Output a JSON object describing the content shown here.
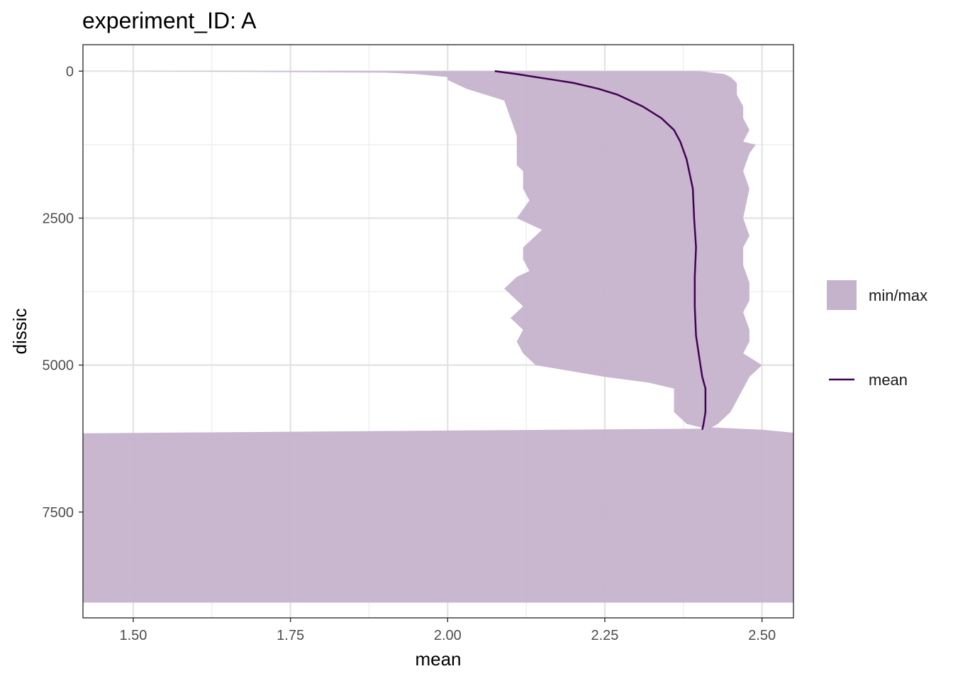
{
  "chart_data": {
    "type": "area",
    "title": "experiment_ID: A",
    "xlabel": "mean",
    "ylabel": "dissic",
    "xlim": [
      1.42,
      2.55
    ],
    "ylim": [
      9300,
      -450
    ],
    "y_reversed": true,
    "grid": true,
    "legend_position": "right",
    "x_ticks": [
      1.5,
      1.75,
      2.0,
      2.25,
      2.5
    ],
    "x_tick_labels": [
      "1.50",
      "1.75",
      "2.00",
      "2.25",
      "2.50"
    ],
    "y_ticks": [
      0,
      2500,
      5000,
      7500
    ],
    "y_tick_labels": [
      "0",
      "2500",
      "5000",
      "7500"
    ],
    "legend": [
      {
        "label": "min/max",
        "kind": "fill",
        "color": "#c5b3cc"
      },
      {
        "label": "mean",
        "kind": "line",
        "color": "#440154"
      }
    ],
    "band": {
      "name": "min/max",
      "color": "#c5b3cc",
      "min": [
        [
          0,
          1.475
        ],
        [
          25,
          1.9
        ],
        [
          50,
          1.95
        ],
        [
          100,
          2.0
        ],
        [
          150,
          2.0
        ],
        [
          200,
          2.01
        ],
        [
          300,
          2.03
        ],
        [
          500,
          2.09
        ],
        [
          800,
          2.1
        ],
        [
          1100,
          2.11
        ],
        [
          1300,
          2.11
        ],
        [
          1600,
          2.11
        ],
        [
          1700,
          2.12
        ],
        [
          2000,
          2.12
        ],
        [
          2200,
          2.13
        ],
        [
          2500,
          2.11
        ],
        [
          2700,
          2.15
        ],
        [
          3000,
          2.12
        ],
        [
          3200,
          2.12
        ],
        [
          3400,
          2.13
        ],
        [
          3500,
          2.11
        ],
        [
          3700,
          2.09
        ],
        [
          4000,
          2.12
        ],
        [
          4200,
          2.1
        ],
        [
          4400,
          2.12
        ],
        [
          4600,
          2.11
        ],
        [
          4800,
          2.12
        ],
        [
          5000,
          2.14
        ],
        [
          5200,
          2.25
        ],
        [
          5300,
          2.32
        ],
        [
          5400,
          2.36
        ],
        [
          5500,
          2.36
        ],
        [
          5800,
          2.36
        ],
        [
          6000,
          2.38
        ],
        [
          6080,
          2.41
        ],
        [
          6130,
          1.8
        ],
        [
          6160,
          1.42
        ],
        [
          9040,
          1.42
        ]
      ],
      "max": [
        [
          0,
          2.4
        ],
        [
          50,
          2.44
        ],
        [
          100,
          2.45
        ],
        [
          200,
          2.46
        ],
        [
          400,
          2.46
        ],
        [
          600,
          2.47
        ],
        [
          800,
          2.47
        ],
        [
          1000,
          2.48
        ],
        [
          1200,
          2.47
        ],
        [
          1250,
          2.49
        ],
        [
          1400,
          2.48
        ],
        [
          1700,
          2.47
        ],
        [
          2000,
          2.48
        ],
        [
          2500,
          2.47
        ],
        [
          2800,
          2.48
        ],
        [
          3000,
          2.47
        ],
        [
          3300,
          2.47
        ],
        [
          3600,
          2.48
        ],
        [
          3900,
          2.48
        ],
        [
          4100,
          2.47
        ],
        [
          4400,
          2.48
        ],
        [
          4600,
          2.48
        ],
        [
          4800,
          2.47
        ],
        [
          5000,
          2.5
        ],
        [
          5200,
          2.48
        ],
        [
          5400,
          2.47
        ],
        [
          5600,
          2.46
        ],
        [
          5800,
          2.45
        ],
        [
          6000,
          2.43
        ],
        [
          6060,
          2.42
        ],
        [
          6100,
          2.5
        ],
        [
          6150,
          2.55
        ],
        [
          9040,
          2.55
        ]
      ]
    },
    "series": [
      {
        "name": "mean",
        "color": "#440154",
        "points": [
          [
            0,
            2.075
          ],
          [
            50,
            2.11
          ],
          [
            100,
            2.14
          ],
          [
            150,
            2.17
          ],
          [
            200,
            2.2
          ],
          [
            300,
            2.24
          ],
          [
            400,
            2.27
          ],
          [
            600,
            2.31
          ],
          [
            800,
            2.34
          ],
          [
            1000,
            2.36
          ],
          [
            1200,
            2.37
          ],
          [
            1500,
            2.38
          ],
          [
            2000,
            2.39
          ],
          [
            2500,
            2.392
          ],
          [
            3000,
            2.395
          ],
          [
            3500,
            2.393
          ],
          [
            4000,
            2.393
          ],
          [
            4500,
            2.395
          ],
          [
            5000,
            2.402
          ],
          [
            5200,
            2.405
          ],
          [
            5400,
            2.41
          ],
          [
            5600,
            2.41
          ],
          [
            5800,
            2.41
          ],
          [
            6000,
            2.407
          ],
          [
            6100,
            2.405
          ]
        ]
      }
    ]
  }
}
